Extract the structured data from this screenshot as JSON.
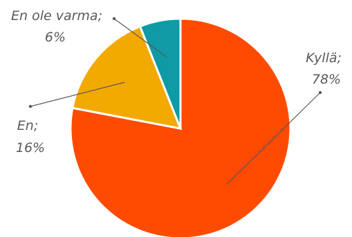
{
  "chart_data": {
    "type": "pie",
    "title": "",
    "start_angle_deg": 0,
    "direction": "clockwise",
    "legend": "none",
    "slices": [
      {
        "category": "Kyllä",
        "value": 78,
        "label": "Kyllä;",
        "value_label": "78%",
        "color": "#ff4b00"
      },
      {
        "category": "En",
        "value": 16,
        "label": "En;",
        "value_label": "16%",
        "color": "#f2a900"
      },
      {
        "category": "En ole varma",
        "value": 6,
        "label": "En ole varma;",
        "value_label": "6%",
        "color": "#0f9aa5"
      }
    ]
  }
}
